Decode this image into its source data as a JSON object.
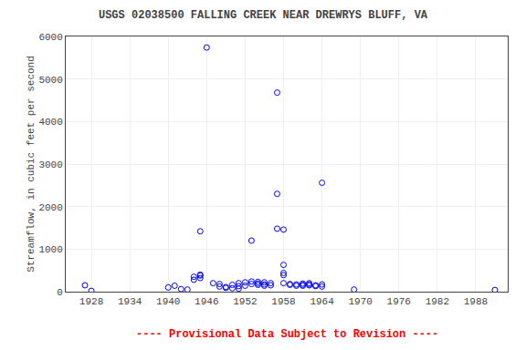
{
  "chart_data": {
    "type": "scatter",
    "title": "USGS 02038500 FALLING CREEK NEAR DREWRYS BLUFF, VA",
    "ylabel": "Streamflow, in cubic feet per second",
    "x": [
      1927,
      1928,
      1940,
      1941,
      1942,
      1943,
      1944,
      1944,
      1945,
      1945,
      1945,
      1945,
      1946,
      1947,
      1948,
      1948,
      1949,
      1949,
      1950,
      1950,
      1951,
      1951,
      1951,
      1952,
      1952,
      1953,
      1953,
      1953,
      1954,
      1954,
      1954,
      1955,
      1955,
      1955,
      1956,
      1956,
      1957,
      1957,
      1957,
      1958,
      1958,
      1958,
      1958,
      1958,
      1959,
      1959,
      1960,
      1960,
      1961,
      1961,
      1961,
      1962,
      1962,
      1962,
      1963,
      1963,
      1964,
      1964,
      1964,
      1969,
      1991
    ],
    "values": [
      150,
      20,
      100,
      140,
      60,
      50,
      280,
      350,
      320,
      380,
      400,
      1420,
      5740,
      200,
      120,
      180,
      90,
      110,
      80,
      160,
      70,
      130,
      200,
      140,
      220,
      240,
      180,
      1200,
      160,
      230,
      190,
      170,
      140,
      220,
      200,
      150,
      2300,
      4680,
      1480,
      1460,
      630,
      440,
      390,
      200,
      160,
      180,
      170,
      140,
      190,
      160,
      140,
      200,
      150,
      170,
      130,
      150,
      2560,
      170,
      120,
      50,
      40
    ],
    "color": "#0000ff",
    "marker": "circle-open",
    "xlim": [
      1924,
      1993
    ],
    "xticks": [
      1928,
      1934,
      1940,
      1946,
      1952,
      1958,
      1964,
      1970,
      1976,
      1982,
      1988
    ],
    "ylim": [
      0,
      6000
    ],
    "yticks": [
      0,
      1000,
      2000,
      3000,
      4000,
      5000,
      6000
    ],
    "grid": true,
    "annotations": [
      {
        "text": "---- Provisional Data Subject to Revision ----",
        "color": "#ff0000"
      }
    ]
  }
}
